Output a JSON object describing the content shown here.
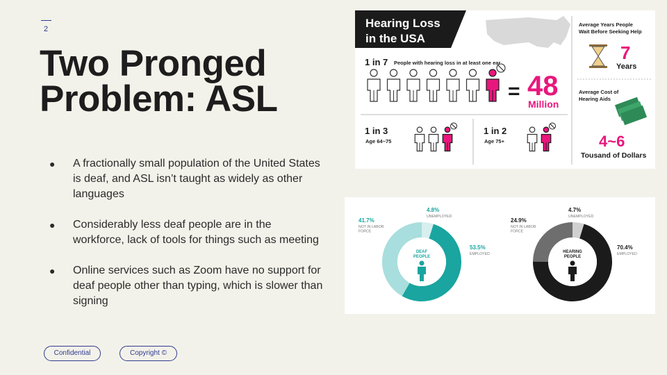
{
  "slide": {
    "number": "2",
    "title": "Two Pronged Problem: ASL",
    "bullets": [
      "A fractionally small population of the United States is deaf, and ASL isn’t taught as widely as other languages",
      "Considerably less deaf people are in the workforce, lack of tools for things such as meeting",
      "Online services such as Zoom have no support for deaf people other than typing, which is slower than signing"
    ],
    "bullet_glyph": "●"
  },
  "footer": {
    "confidential": "Confidential",
    "copyright": "Copyright ©"
  },
  "infographic_hearing": {
    "title_line1": "Hearing Loss",
    "title_line2": "in the USA",
    "ratio_main": "1 in 7",
    "ratio_main_caption": "People with hearing loss in at least one ear",
    "equals": "=",
    "big_number": "48",
    "big_unit": "Million",
    "ratio_a": "1 in 3",
    "ratio_a_caption": "Age 64~75",
    "ratio_b": "1 in 2",
    "ratio_b_caption": "Age 75+",
    "wait_caption": "Average Years People Wait Before Seeking Help",
    "wait_number": "7",
    "wait_unit": "Years",
    "cost_caption_line1": "Average Cost of",
    "cost_caption_line2": "Hearing Aids",
    "cost_range": "4~6",
    "cost_unit": "Tousand of Dollars",
    "colors": {
      "accent": "#e8177d",
      "dark": "#1b1b1b",
      "map": "#d9d9d9",
      "money": "#2e8b57"
    }
  },
  "chart_data": [
    {
      "type": "pie",
      "center_label_line1": "DEAF",
      "center_label_line2": "PEOPLE",
      "categories": [
        "NOT IN LABOR FORCE",
        "UNEMPLOYED",
        "EMPLOYED"
      ],
      "values": [
        41.7,
        4.8,
        53.5
      ],
      "value_labels": [
        "41.7%",
        "4.8%",
        "53.5%"
      ],
      "colors": [
        "#a8dedd",
        "#d7efee",
        "#1aa5a0"
      ]
    },
    {
      "type": "pie",
      "center_label_line1": "HEARING",
      "center_label_line2": "PEOPLE",
      "categories": [
        "NOT IN LABOR FORCE",
        "UNEMPLOYED",
        "EMPLOYED"
      ],
      "values": [
        24.9,
        4.7,
        70.4
      ],
      "value_labels": [
        "24.9%",
        "4.7%",
        "70.4%"
      ],
      "colors": [
        "#6e6e6e",
        "#d0d0d0",
        "#1b1b1b"
      ]
    }
  ]
}
